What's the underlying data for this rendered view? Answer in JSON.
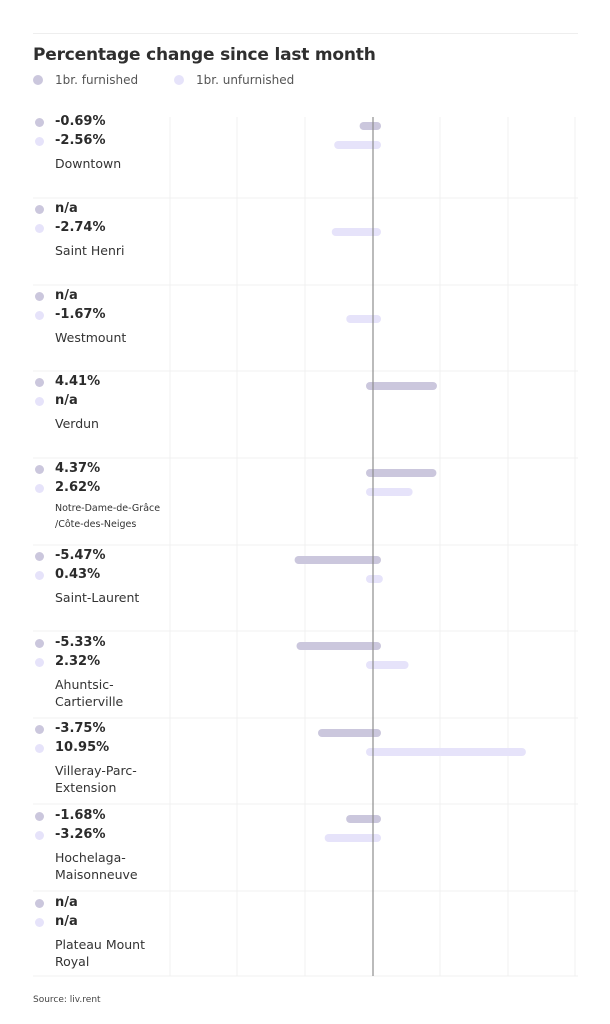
{
  "title": "Percentage change since last month",
  "source": "Source: liv.rent",
  "colors": {
    "furnished": "#cbc7dd",
    "unfurnished": "#e6e3fa",
    "zero_line": "#8e8e8e",
    "grid": "#f1f1f1"
  },
  "chart_data": {
    "type": "bar",
    "orientation": "horizontal",
    "title": "Percentage change since last month",
    "legend": [
      "1br. furnished",
      "1br. unfurnished"
    ],
    "legend_position": "top-left",
    "xlim": [
      -11,
      30
    ],
    "grid": true,
    "categories": [
      "Downtown",
      "Saint Henri",
      "Westmount",
      "Verdun",
      "Notre-Dame-de-Grâce /Côte-des-Neiges",
      "Saint-Laurent",
      "Ahuntsic-Cartierville",
      "Villeray-Parc-Extension",
      "Hochelaga-Maisonneuve",
      "Plateau Mount Royal"
    ],
    "series": [
      {
        "name": "1br. furnished",
        "values": [
          -0.69,
          null,
          null,
          4.41,
          4.37,
          -5.47,
          -5.33,
          -3.75,
          -1.68,
          null
        ],
        "labels": [
          "-0.69%",
          "n/a",
          "n/a",
          "4.41%",
          "4.37%",
          "-5.47%",
          "-5.33%",
          "-3.75%",
          "-1.68%",
          "n/a"
        ]
      },
      {
        "name": "1br. unfurnished",
        "values": [
          -2.56,
          -2.74,
          -1.67,
          null,
          2.62,
          0.43,
          2.32,
          10.95,
          -3.26,
          null
        ],
        "labels": [
          "-2.56%",
          "-2.74%",
          "-1.67%",
          "n/a",
          "2.62%",
          "0.43%",
          "2.32%",
          "10.95%",
          "-3.26%",
          "n/a"
        ]
      }
    ]
  },
  "rows": [
    {
      "name_line1": "Downtown",
      "name_line2": "",
      "furnished_label": "-0.69%",
      "unfurnished_label": "-2.56%"
    },
    {
      "name_line1": "Saint Henri",
      "name_line2": "",
      "furnished_label": "n/a",
      "unfurnished_label": "-2.74%"
    },
    {
      "name_line1": "Westmount",
      "name_line2": "",
      "furnished_label": "n/a",
      "unfurnished_label": "-1.67%"
    },
    {
      "name_line1": "Verdun",
      "name_line2": "",
      "furnished_label": "4.41%",
      "unfurnished_label": "n/a"
    },
    {
      "name_line1": "Notre-Dame-de-Grâce",
      "name_line2": "/Côte-des-Neiges",
      "furnished_label": "4.37%",
      "unfurnished_label": "2.62%"
    },
    {
      "name_line1": "Saint-Laurent",
      "name_line2": "",
      "furnished_label": "-5.47%",
      "unfurnished_label": "0.43%"
    },
    {
      "name_line1": "Ahuntsic-",
      "name_line2": "Cartierville",
      "furnished_label": "-5.33%",
      "unfurnished_label": "2.32%"
    },
    {
      "name_line1": "Villeray-Parc-",
      "name_line2": "Extension",
      "furnished_label": "-3.75%",
      "unfurnished_label": "10.95%"
    },
    {
      "name_line1": "Hochelaga-",
      "name_line2": "Maisonneuve",
      "furnished_label": "-1.68%",
      "unfurnished_label": "-3.26%"
    },
    {
      "name_line1": "Plateau Mount",
      "name_line2": "Royal",
      "furnished_label": "n/a",
      "unfurnished_label": "n/a"
    }
  ]
}
